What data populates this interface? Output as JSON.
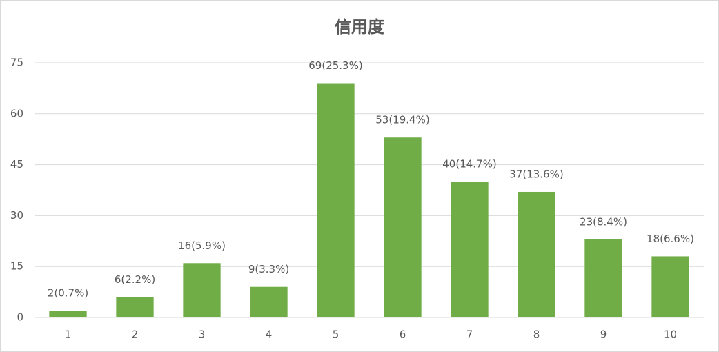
{
  "chart_data": {
    "type": "bar",
    "title": "信用度",
    "categories": [
      "1",
      "2",
      "3",
      "4",
      "5",
      "6",
      "7",
      "8",
      "9",
      "10"
    ],
    "values": [
      2,
      6,
      16,
      9,
      69,
      53,
      40,
      37,
      23,
      18
    ],
    "value_labels": [
      "2(0.7%)",
      "6(2.2%)",
      "16(5.9%)",
      "9(3.3%)",
      "69(25.3%)",
      "53(19.4%)",
      "40(14.7%)",
      "37(13.6%)",
      "23(8.4%)",
      "18(6.6%)"
    ],
    "color": "#70ad47",
    "ylim": [
      0,
      75
    ],
    "yticks": [
      0,
      15,
      30,
      45,
      60,
      75
    ],
    "grid": true
  }
}
